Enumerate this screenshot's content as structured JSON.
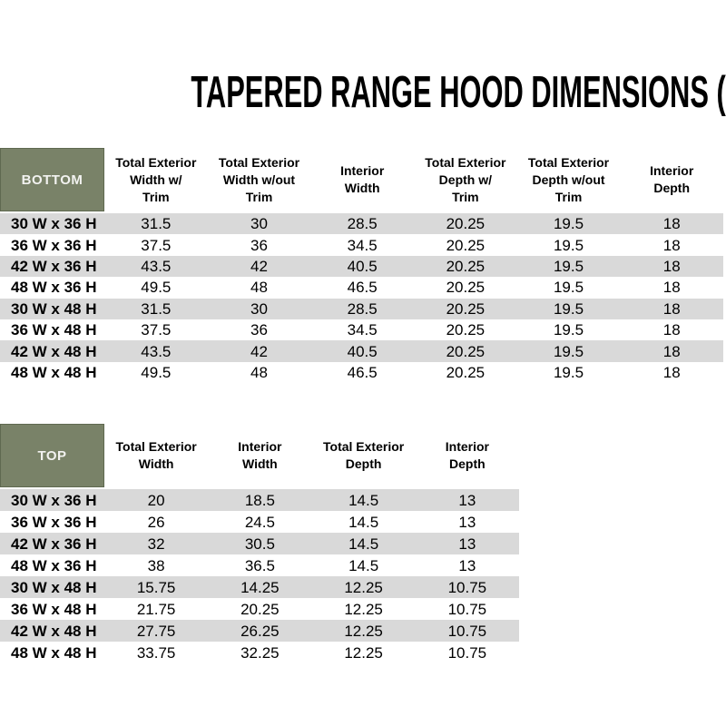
{
  "title": "TAPERED RANGE HOOD DIMENSIONS (INCHES)",
  "colors": {
    "header_green": "#798268",
    "header_green_border": "#5F6950",
    "corner_text": "#F2F2F0",
    "stripe_gray": "#D9D9D9",
    "text": "#000000",
    "background": "#FFFFFF"
  },
  "bottom_table": {
    "corner_label": "BOTTOM",
    "columns": [
      "Total Exterior\nWidth w/\nTrim",
      "Total Exterior\nWidth w/out\nTrim",
      "Interior\nWidth",
      "Total Exterior\nDepth w/\nTrim",
      "Total Exterior\nDepth w/out\nTrim",
      "Interior\nDepth"
    ],
    "rows": [
      {
        "label": "30 W x 36 H",
        "values": [
          "31.5",
          "30",
          "28.5",
          "20.25",
          "19.5",
          "18"
        ]
      },
      {
        "label": "36 W x 36 H",
        "values": [
          "37.5",
          "36",
          "34.5",
          "20.25",
          "19.5",
          "18"
        ]
      },
      {
        "label": "42 W x 36 H",
        "values": [
          "43.5",
          "42",
          "40.5",
          "20.25",
          "19.5",
          "18"
        ]
      },
      {
        "label": "48 W x 36 H",
        "values": [
          "49.5",
          "48",
          "46.5",
          "20.25",
          "19.5",
          "18"
        ]
      },
      {
        "label": "30 W x 48 H",
        "values": [
          "31.5",
          "30",
          "28.5",
          "20.25",
          "19.5",
          "18"
        ]
      },
      {
        "label": "36 W x 48 H",
        "values": [
          "37.5",
          "36",
          "34.5",
          "20.25",
          "19.5",
          "18"
        ]
      },
      {
        "label": "42 W x 48 H",
        "values": [
          "43.5",
          "42",
          "40.5",
          "20.25",
          "19.5",
          "18"
        ]
      },
      {
        "label": "48 W x 48 H",
        "values": [
          "49.5",
          "48",
          "46.5",
          "20.25",
          "19.5",
          "18"
        ]
      }
    ]
  },
  "top_table": {
    "corner_label": "TOP",
    "columns": [
      "Total Exterior\nWidth",
      "Interior\nWidth",
      "Total Exterior\nDepth",
      "Interior\nDepth"
    ],
    "rows": [
      {
        "label": "30 W x 36 H",
        "values": [
          "20",
          "18.5",
          "14.5",
          "13"
        ]
      },
      {
        "label": "36 W x 36 H",
        "values": [
          "26",
          "24.5",
          "14.5",
          "13"
        ]
      },
      {
        "label": "42 W x 36 H",
        "values": [
          "32",
          "30.5",
          "14.5",
          "13"
        ]
      },
      {
        "label": "48 W x 36 H",
        "values": [
          "38",
          "36.5",
          "14.5",
          "13"
        ]
      },
      {
        "label": "30 W x 48 H",
        "values": [
          "15.75",
          "14.25",
          "12.25",
          "10.75"
        ]
      },
      {
        "label": "36 W x 48 H",
        "values": [
          "21.75",
          "20.25",
          "12.25",
          "10.75"
        ]
      },
      {
        "label": "42 W x 48 H",
        "values": [
          "27.75",
          "26.25",
          "12.25",
          "10.75"
        ]
      },
      {
        "label": "48 W x 48 H",
        "values": [
          "33.75",
          "32.25",
          "12.25",
          "10.75"
        ]
      }
    ]
  }
}
